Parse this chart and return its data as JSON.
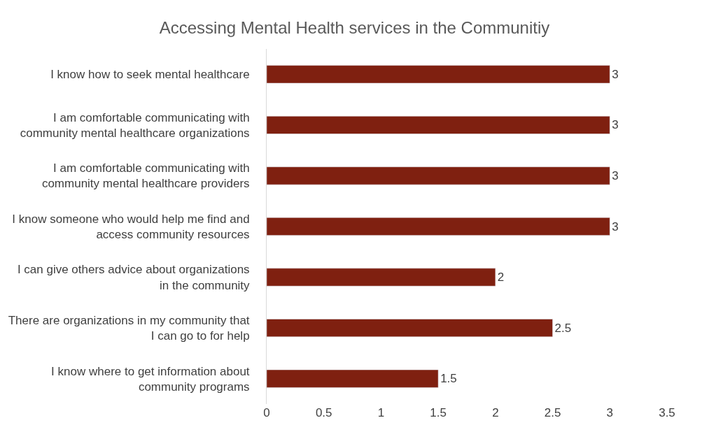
{
  "chart_data": {
    "type": "bar",
    "orientation": "horizontal",
    "title": "Accessing Mental Health services in the Communitiy",
    "categories": [
      "I know how to seek mental healthcare",
      "I am comfortable communicating with community mental healthcare organizations",
      "I am comfortable communicating with community mental healthcare providers",
      "I know someone who would help me find and access community resources",
      "I can give others advice about organizations in the community",
      "There are organizations in my community that I can go to for help",
      "I know where to get information about community programs"
    ],
    "values": [
      3,
      3,
      3,
      3,
      2,
      2.5,
      1.5
    ],
    "color": "#7f2010",
    "xlim": [
      0,
      3.5
    ],
    "xticks": [
      0,
      0.5,
      1,
      1.5,
      2,
      2.5,
      3,
      3.5
    ],
    "data_labels": true
  }
}
